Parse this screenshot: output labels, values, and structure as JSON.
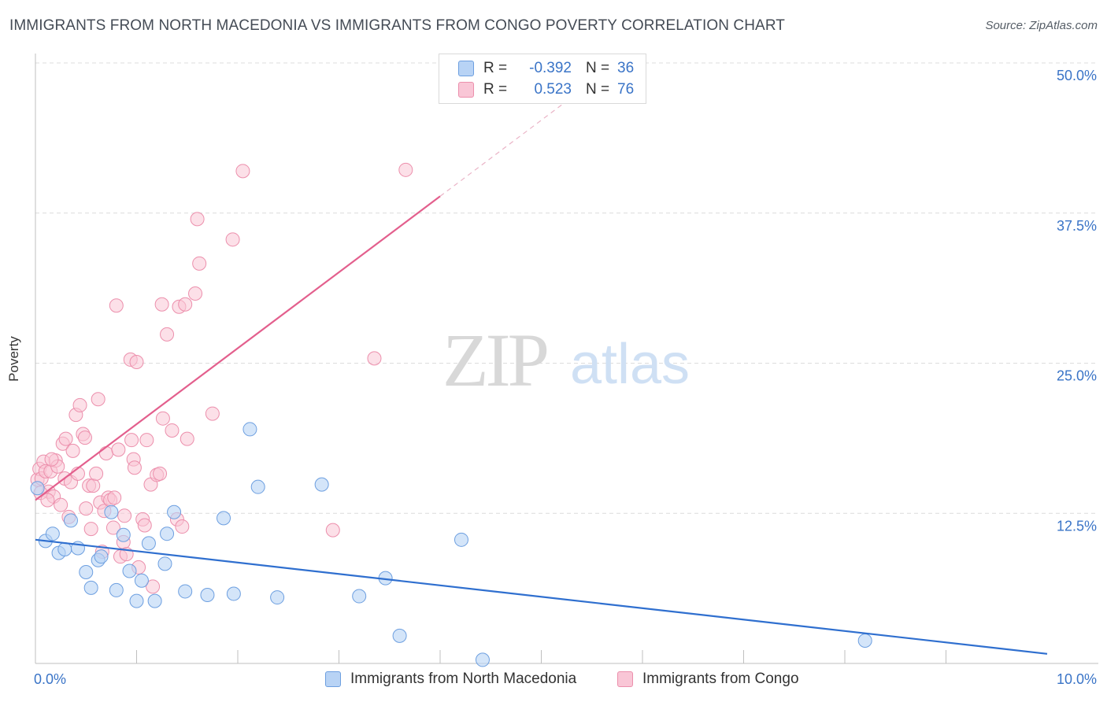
{
  "title": "IMMIGRANTS FROM NORTH MACEDONIA VS IMMIGRANTS FROM CONGO POVERTY CORRELATION CHART",
  "source": "Source: ZipAtlas.com",
  "watermark": {
    "zip": "ZIP",
    "atlas": "atlas"
  },
  "legend_top": {
    "rows": [
      {
        "r_label": "R =",
        "r_value": "-0.392",
        "n_label": "N =",
        "n_value": "36",
        "color": "blue"
      },
      {
        "r_label": "R =",
        "r_value": "0.523",
        "n_label": "N =",
        "n_value": "76",
        "color": "pink"
      }
    ]
  },
  "legend_bottom": {
    "items": [
      {
        "label": "Immigrants from North Macedonia",
        "color": "blue"
      },
      {
        "label": "Immigrants from Congo",
        "color": "pink"
      }
    ]
  },
  "colors": {
    "blue_fill": "#b8d3f5",
    "blue_stroke": "#6d9fe0",
    "blue_line": "#2f6fcf",
    "pink_fill": "#f9c6d6",
    "pink_stroke": "#ec8fac",
    "pink_line": "#e35f8d",
    "grid": "#dcdcdc",
    "axis_label": "#3a74c7"
  },
  "chart_data": {
    "type": "scatter",
    "title": "IMMIGRANTS FROM NORTH MACEDONIA VS IMMIGRANTS FROM CONGO POVERTY CORRELATION CHART",
    "xlabel": "",
    "ylabel": "Poverty",
    "xlim": [
      0,
      10
    ],
    "ylim": [
      0,
      50
    ],
    "x_tick_labels": [
      "0.0%",
      "10.0%"
    ],
    "y_ticks": [
      12.5,
      25.0,
      37.5,
      50.0
    ],
    "y_tick_labels": [
      "12.5%",
      "25.0%",
      "37.5%",
      "50.0%"
    ],
    "grid": true,
    "legend_position": "top-center",
    "series": [
      {
        "name": "Immigrants from North Macedonia",
        "color": "blue",
        "R": -0.392,
        "N": 36,
        "trend": {
          "x": [
            0,
            10
          ],
          "y": [
            10.3,
            0.8
          ]
        },
        "points": [
          [
            0.02,
            14.6
          ],
          [
            0.1,
            10.2
          ],
          [
            0.17,
            10.8
          ],
          [
            0.23,
            9.2
          ],
          [
            0.29,
            9.5
          ],
          [
            0.35,
            11.9
          ],
          [
            0.42,
            9.6
          ],
          [
            0.5,
            7.6
          ],
          [
            0.55,
            6.3
          ],
          [
            0.62,
            8.6
          ],
          [
            0.65,
            8.9
          ],
          [
            0.75,
            12.6
          ],
          [
            0.8,
            6.1
          ],
          [
            0.87,
            10.7
          ],
          [
            0.93,
            7.7
          ],
          [
            1.0,
            5.2
          ],
          [
            1.05,
            6.9
          ],
          [
            1.12,
            10.0
          ],
          [
            1.18,
            5.2
          ],
          [
            1.28,
            8.3
          ],
          [
            1.3,
            10.8
          ],
          [
            1.37,
            12.6
          ],
          [
            1.48,
            6.0
          ],
          [
            1.7,
            5.7
          ],
          [
            1.86,
            12.1
          ],
          [
            1.96,
            5.8
          ],
          [
            2.12,
            19.5
          ],
          [
            2.2,
            14.7
          ],
          [
            2.39,
            5.5
          ],
          [
            2.83,
            14.9
          ],
          [
            3.2,
            5.6
          ],
          [
            3.46,
            7.1
          ],
          [
            3.6,
            2.3
          ],
          [
            4.21,
            10.3
          ],
          [
            4.42,
            0.3
          ],
          [
            8.2,
            1.9
          ]
        ]
      },
      {
        "name": "Immigrants from Congo",
        "color": "pink",
        "R": 0.523,
        "N": 76,
        "trend": {
          "x": [
            0,
            4.0
          ],
          "y": [
            13.6,
            38.9
          ]
        },
        "trend_dashed": {
          "x": [
            4.0,
            5.2
          ],
          "y": [
            38.9,
            46.5
          ]
        },
        "points": [
          [
            0.02,
            15.3
          ],
          [
            0.04,
            16.2
          ],
          [
            0.06,
            15.4
          ],
          [
            0.08,
            16.8
          ],
          [
            0.1,
            16.0
          ],
          [
            0.13,
            14.3
          ],
          [
            0.15,
            16.0
          ],
          [
            0.18,
            13.9
          ],
          [
            0.2,
            16.9
          ],
          [
            0.22,
            16.4
          ],
          [
            0.25,
            13.2
          ],
          [
            0.27,
            18.3
          ],
          [
            0.29,
            15.4
          ],
          [
            0.3,
            18.7
          ],
          [
            0.33,
            12.2
          ],
          [
            0.35,
            15.1
          ],
          [
            0.37,
            17.7
          ],
          [
            0.4,
            20.7
          ],
          [
            0.42,
            15.8
          ],
          [
            0.44,
            21.5
          ],
          [
            0.47,
            19.1
          ],
          [
            0.49,
            18.8
          ],
          [
            0.5,
            12.9
          ],
          [
            0.53,
            14.8
          ],
          [
            0.55,
            11.2
          ],
          [
            0.57,
            14.8
          ],
          [
            0.6,
            15.8
          ],
          [
            0.62,
            22.0
          ],
          [
            0.64,
            13.4
          ],
          [
            0.66,
            9.3
          ],
          [
            0.68,
            12.7
          ],
          [
            0.7,
            17.5
          ],
          [
            0.72,
            13.8
          ],
          [
            0.74,
            13.6
          ],
          [
            0.77,
            11.3
          ],
          [
            0.78,
            13.8
          ],
          [
            0.8,
            29.8
          ],
          [
            0.82,
            17.8
          ],
          [
            0.84,
            8.9
          ],
          [
            0.87,
            10.1
          ],
          [
            0.88,
            12.3
          ],
          [
            0.9,
            9.1
          ],
          [
            0.94,
            25.3
          ],
          [
            0.95,
            18.6
          ],
          [
            0.97,
            17.0
          ],
          [
            0.98,
            16.3
          ],
          [
            1.0,
            25.1
          ],
          [
            1.02,
            8.0
          ],
          [
            1.06,
            12.0
          ],
          [
            1.08,
            11.5
          ],
          [
            1.1,
            18.6
          ],
          [
            1.14,
            14.9
          ],
          [
            1.16,
            6.4
          ],
          [
            1.2,
            15.7
          ],
          [
            1.23,
            15.8
          ],
          [
            1.25,
            29.9
          ],
          [
            1.26,
            20.4
          ],
          [
            1.3,
            27.4
          ],
          [
            1.35,
            19.4
          ],
          [
            1.4,
            12.0
          ],
          [
            1.42,
            29.7
          ],
          [
            1.45,
            11.4
          ],
          [
            1.48,
            29.9
          ],
          [
            1.5,
            18.7
          ],
          [
            1.58,
            30.8
          ],
          [
            1.6,
            37.0
          ],
          [
            1.62,
            33.3
          ],
          [
            1.75,
            20.8
          ],
          [
            1.95,
            35.3
          ],
          [
            2.05,
            41.0
          ],
          [
            2.94,
            11.1
          ],
          [
            3.35,
            25.4
          ],
          [
            3.66,
            41.1
          ],
          [
            0.05,
            14.2
          ],
          [
            0.12,
            13.6
          ],
          [
            0.16,
            17.0
          ]
        ]
      }
    ]
  }
}
